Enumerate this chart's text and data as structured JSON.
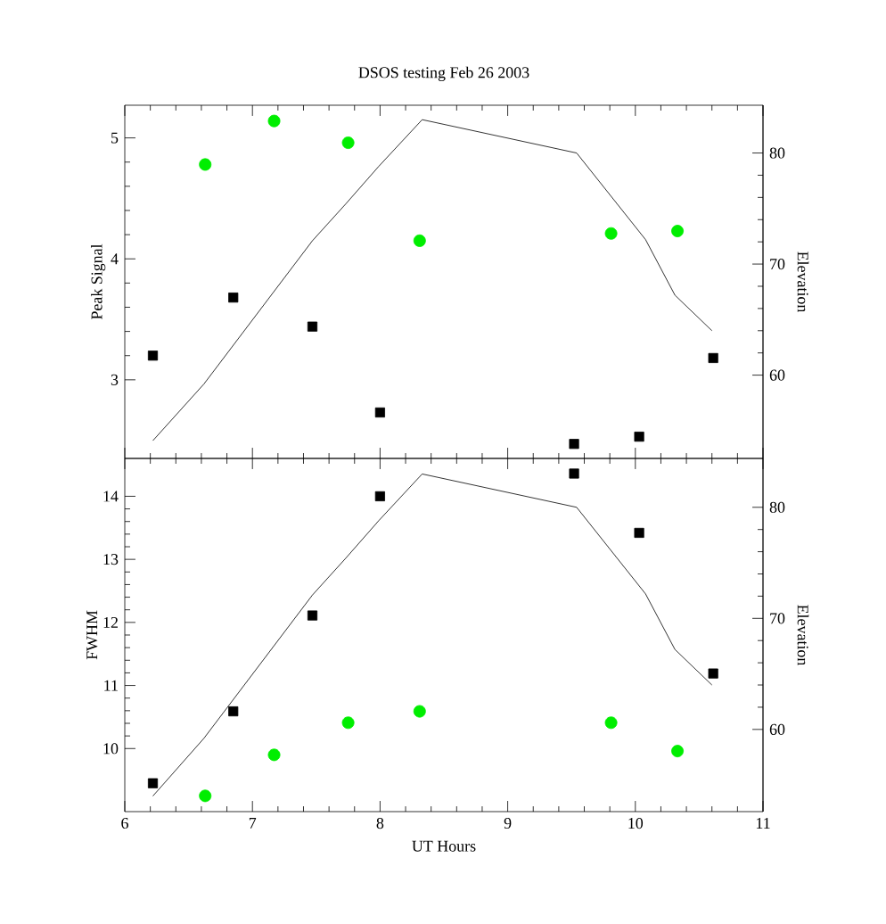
{
  "chart_data": [
    {
      "type": "scatter",
      "title": "DSOS testing Feb 26 2003",
      "ylabel": "Peak Signal",
      "y2label": "Elevation",
      "xlim": [
        6,
        11
      ],
      "xticks": [
        6,
        7,
        8,
        9,
        10,
        11
      ],
      "ylim": [
        2.35,
        5.27
      ],
      "yticks": [
        3,
        4,
        5
      ],
      "y2lim": [
        52.5,
        84.3
      ],
      "y2ticks": [
        60,
        70,
        80
      ],
      "tick_labels": "y",
      "series": [
        {
          "marker": "square",
          "color": "#000000",
          "x": [
            6.22,
            6.85,
            7.47,
            8.0,
            9.52,
            10.03,
            10.61
          ],
          "values": [
            3.2,
            3.68,
            3.44,
            2.73,
            2.47,
            2.53,
            3.18
          ]
        },
        {
          "marker": "circle",
          "color": "#00ee00",
          "x": [
            6.63,
            7.17,
            7.75,
            8.31,
            9.81,
            10.33
          ],
          "values": [
            4.78,
            5.14,
            4.96,
            4.15,
            4.21,
            4.23
          ]
        },
        {
          "type": "line",
          "axis": "y2",
          "marker": "none",
          "color": "#000000",
          "x": [
            6.22,
            6.62,
            7.47,
            7.73,
            7.99,
            8.33,
            9.54,
            10.08,
            10.31,
            10.6
          ],
          "values": [
            54.1,
            59.2,
            72.1,
            75.4,
            78.8,
            83.0,
            80.0,
            72.2,
            67.2,
            64.0
          ]
        }
      ]
    },
    {
      "type": "scatter",
      "xlabel": "UT Hours",
      "ylabel": "FWHM",
      "y2label": "Elevation",
      "xlim": [
        6,
        11
      ],
      "xticks": [
        6,
        7,
        8,
        9,
        10,
        11
      ],
      "ylim": [
        9.0,
        14.6
      ],
      "yticks": [
        10,
        11,
        12,
        13,
        14
      ],
      "y2lim": [
        52.6,
        84.4
      ],
      "y2ticks": [
        60,
        70,
        80
      ],
      "series": [
        {
          "marker": "square",
          "color": "#000000",
          "x": [
            6.22,
            6.85,
            7.47,
            8.0,
            9.52,
            10.03,
            10.61
          ],
          "values": [
            9.45,
            10.59,
            12.11,
            14.0,
            14.36,
            13.42,
            11.19
          ]
        },
        {
          "marker": "circle",
          "color": "#00ee00",
          "x": [
            6.63,
            7.17,
            7.75,
            8.31,
            9.81,
            10.33
          ],
          "values": [
            9.25,
            9.9,
            10.41,
            10.59,
            10.41,
            9.96
          ]
        },
        {
          "type": "line",
          "axis": "y2",
          "marker": "none",
          "color": "#000000",
          "x": [
            6.22,
            6.62,
            7.47,
            7.73,
            7.99,
            8.33,
            9.54,
            10.08,
            10.31,
            10.6
          ],
          "values": [
            54.0,
            59.2,
            72.1,
            75.4,
            78.8,
            83.0,
            80.0,
            72.2,
            67.2,
            64.0
          ]
        }
      ]
    }
  ]
}
